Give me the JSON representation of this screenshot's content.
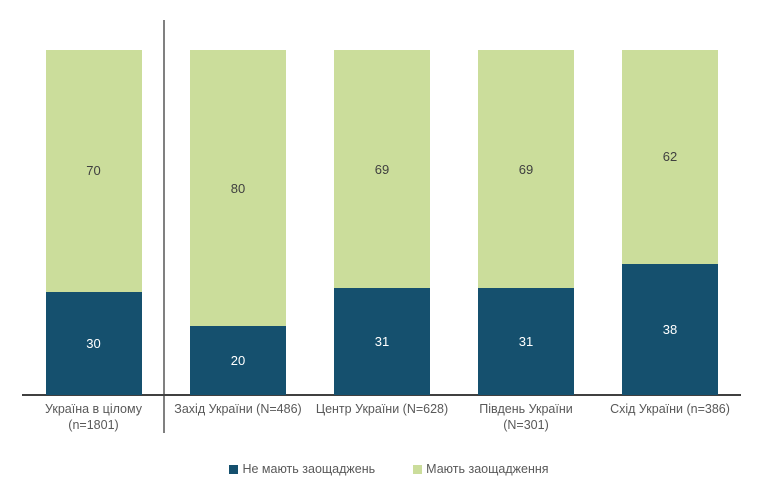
{
  "page": {
    "background": "#ffffff"
  },
  "chart_data": {
    "type": "bar",
    "stacked": true,
    "orientation": "vertical",
    "unit": "%",
    "title": "",
    "xlabel": "",
    "ylabel": "",
    "ylim": [
      0,
      100
    ],
    "grid": false,
    "legend_position": "bottom",
    "categories": [
      "Україна в цілому\n(n=1801)",
      "Захід України (N=486)",
      "Центр України (N=628)",
      "Південь України\n(N=301)",
      "Схід України (n=386)"
    ],
    "series": [
      {
        "name": "Не мають заощаджень",
        "color": "#15506e",
        "label_color": "#ffffff",
        "values": [
          30,
          20,
          31,
          31,
          38
        ]
      },
      {
        "name": "Мають заощадження",
        "color": "#cbdd9b",
        "label_color": "#404040",
        "values": [
          70,
          80,
          69,
          69,
          62
        ]
      }
    ],
    "separator_after_category_index": 0,
    "axis_line_color": "#404040",
    "separator_line_color": "#808080",
    "category_label_color": "#595959",
    "legend_text_color": "#595959"
  }
}
